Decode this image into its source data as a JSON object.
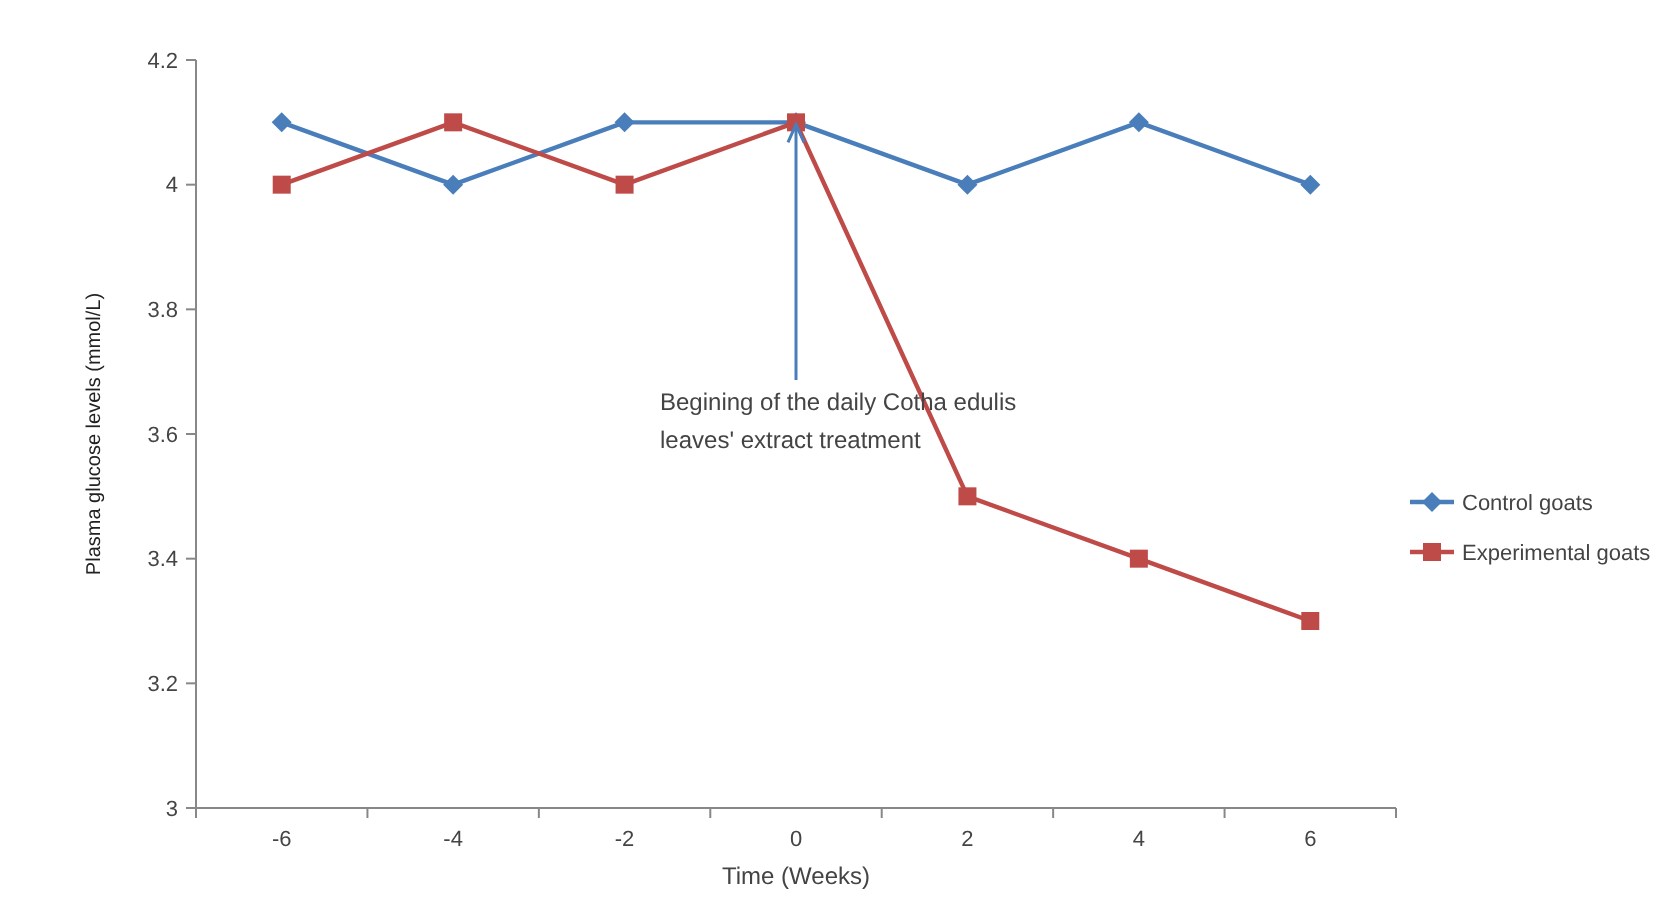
{
  "chart_data": {
    "type": "line",
    "xlabel": "Time (Weeks)",
    "ylabel": "Plasma glucose levels (mmol/L)",
    "categories": [
      "-6",
      "-4",
      "-2",
      "0",
      "2",
      "4",
      "6"
    ],
    "series": [
      {
        "name": "Control goats",
        "color": "#4a7ebb",
        "marker": "diamond",
        "values": [
          4.1,
          4.0,
          4.1,
          4.1,
          4.0,
          4.1,
          4.0
        ]
      },
      {
        "name": "Experimental goats",
        "color": "#be4b48",
        "marker": "square",
        "values": [
          4.0,
          4.1,
          4.0,
          4.1,
          3.5,
          3.4,
          3.3
        ]
      }
    ],
    "ylim": [
      3,
      4.2
    ],
    "yticks": [
      3,
      3.2,
      3.4,
      3.6,
      3.8,
      4,
      4.2
    ],
    "grid": false,
    "legend": "right",
    "line_style": "solid",
    "annotations": [
      {
        "text": "Begining of the daily Cotha edulis leaves' extract treatment",
        "x": "0",
        "y": 4.1
      }
    ]
  }
}
